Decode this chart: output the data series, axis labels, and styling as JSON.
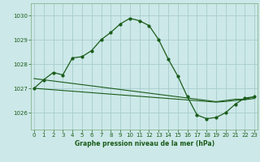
{
  "title": "Graphe pression niveau de la mer (hPa)",
  "bg_color": "#cce8e8",
  "grid_color": "#a8cccc",
  "line_color": "#1a5c1a",
  "x_ticks": [
    0,
    1,
    2,
    3,
    4,
    5,
    6,
    7,
    8,
    9,
    10,
    11,
    12,
    13,
    14,
    15,
    16,
    17,
    18,
    19,
    20,
    21,
    22,
    23
  ],
  "y_ticks": [
    1026,
    1027,
    1028,
    1029,
    1030
  ],
  "ylim": [
    1025.3,
    1030.5
  ],
  "xlim": [
    -0.3,
    23.3
  ],
  "line1_x": [
    0,
    1,
    2,
    3,
    4,
    5,
    6,
    7,
    8,
    9,
    10,
    11,
    12,
    13,
    14,
    15,
    16,
    17,
    18,
    19,
    20,
    21,
    22,
    23
  ],
  "line1_y": [
    1027.0,
    1027.35,
    1027.65,
    1027.55,
    1028.25,
    1028.3,
    1028.55,
    1029.0,
    1029.3,
    1029.65,
    1029.88,
    1029.78,
    1029.58,
    1029.0,
    1028.2,
    1027.5,
    1026.65,
    1025.9,
    1025.75,
    1025.8,
    1026.0,
    1026.35,
    1026.6,
    1026.65
  ],
  "line2_x": [
    0,
    1,
    2,
    3,
    4,
    5,
    6,
    7,
    8,
    9,
    10,
    11,
    12,
    13,
    14,
    15,
    16,
    17,
    18,
    19,
    20,
    21,
    22,
    23
  ],
  "line2_y": [
    1027.4,
    1027.35,
    1027.3,
    1027.25,
    1027.2,
    1027.15,
    1027.1,
    1027.05,
    1027.0,
    1026.95,
    1026.9,
    1026.85,
    1026.8,
    1026.75,
    1026.7,
    1026.65,
    1026.6,
    1026.55,
    1026.5,
    1026.45,
    1026.5,
    1026.55,
    1026.55,
    1026.65
  ],
  "line3_x": [
    0,
    1,
    2,
    3,
    4,
    5,
    6,
    7,
    8,
    9,
    10,
    11,
    12,
    13,
    14,
    15,
    16,
    17,
    18,
    19,
    20,
    21,
    22,
    23
  ],
  "line3_y": [
    1027.0,
    1026.97,
    1026.94,
    1026.91,
    1026.88,
    1026.85,
    1026.82,
    1026.79,
    1026.76,
    1026.73,
    1026.7,
    1026.67,
    1026.64,
    1026.61,
    1026.58,
    1026.55,
    1026.52,
    1026.49,
    1026.46,
    1026.43,
    1026.46,
    1026.5,
    1026.53,
    1026.58
  ]
}
